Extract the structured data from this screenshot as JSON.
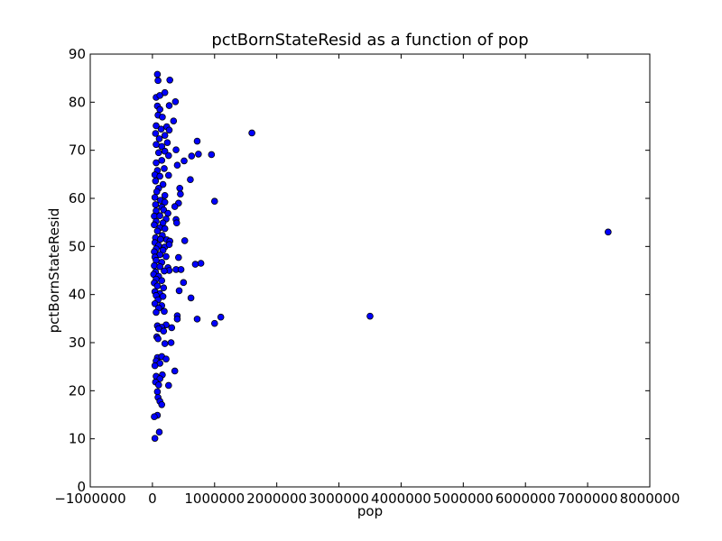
{
  "chart_data": {
    "type": "scatter",
    "title": "pctBornStateResid as a function of pop",
    "xlabel": "pop",
    "ylabel": "pctBornStateResid",
    "xlim": [
      -1000000,
      8000000
    ],
    "ylim": [
      0,
      90
    ],
    "xticks": [
      -1000000,
      0,
      1000000,
      2000000,
      3000000,
      4000000,
      5000000,
      6000000,
      7000000,
      8000000
    ],
    "xtick_labels": [
      "−1000000",
      "0",
      "1000000",
      "2000000",
      "3000000",
      "4000000",
      "5000000",
      "6000000",
      "7000000",
      "8000000"
    ],
    "yticks": [
      0,
      10,
      20,
      30,
      40,
      50,
      60,
      70,
      80,
      90
    ],
    "ytick_labels": [
      "0",
      "10",
      "20",
      "30",
      "40",
      "50",
      "60",
      "70",
      "80",
      "90"
    ],
    "grid": false,
    "marker_color": "#0000ff",
    "marker_edge": "#000000",
    "points": [
      [
        80000,
        85.8
      ],
      [
        90000,
        84.5
      ],
      [
        280000,
        84.6
      ],
      [
        60000,
        81.0
      ],
      [
        120000,
        81.4
      ],
      [
        200000,
        82.0
      ],
      [
        370000,
        80.1
      ],
      [
        80000,
        79.2
      ],
      [
        120000,
        78.5
      ],
      [
        270000,
        79.3
      ],
      [
        90000,
        77.3
      ],
      [
        160000,
        76.9
      ],
      [
        340000,
        76.1
      ],
      [
        60000,
        75.1
      ],
      [
        140000,
        74.4
      ],
      [
        230000,
        74.9
      ],
      [
        270000,
        74.2
      ],
      [
        1600000,
        73.6
      ],
      [
        50000,
        73.5
      ],
      [
        110000,
        72.4
      ],
      [
        200000,
        73.1
      ],
      [
        720000,
        71.9
      ],
      [
        60000,
        71.2
      ],
      [
        150000,
        70.8
      ],
      [
        240000,
        71.6
      ],
      [
        380000,
        70.1
      ],
      [
        740000,
        69.2
      ],
      [
        950000,
        69.1
      ],
      [
        630000,
        68.8
      ],
      [
        100000,
        69.5
      ],
      [
        200000,
        69.8
      ],
      [
        260000,
        68.9
      ],
      [
        510000,
        67.8
      ],
      [
        60000,
        67.4
      ],
      [
        150000,
        67.9
      ],
      [
        400000,
        66.9
      ],
      [
        80000,
        65.8
      ],
      [
        190000,
        66.2
      ],
      [
        40000,
        64.9
      ],
      [
        120000,
        64.6
      ],
      [
        260000,
        64.8
      ],
      [
        610000,
        63.9
      ],
      [
        50000,
        63.6
      ],
      [
        170000,
        62.9
      ],
      [
        100000,
        62.1
      ],
      [
        440000,
        62.1
      ],
      [
        70000,
        61.4
      ],
      [
        200000,
        60.6
      ],
      [
        450000,
        60.9
      ],
      [
        40000,
        60.2
      ],
      [
        130000,
        59.6
      ],
      [
        200000,
        59.2
      ],
      [
        1000000,
        59.4
      ],
      [
        420000,
        59.0
      ],
      [
        50000,
        58.7
      ],
      [
        150000,
        58.2
      ],
      [
        360000,
        58.3
      ],
      [
        60000,
        57.4
      ],
      [
        180000,
        57.6
      ],
      [
        250000,
        56.9
      ],
      [
        30000,
        56.3
      ],
      [
        120000,
        56.4
      ],
      [
        220000,
        55.7
      ],
      [
        380000,
        55.6
      ],
      [
        60000,
        55.2
      ],
      [
        170000,
        54.9
      ],
      [
        390000,
        54.9
      ],
      [
        30000,
        54.5
      ],
      [
        120000,
        53.9
      ],
      [
        200000,
        53.7
      ],
      [
        80000,
        53.2
      ],
      [
        160000,
        52.3
      ],
      [
        50000,
        51.8
      ],
      [
        130000,
        51.5
      ],
      [
        230000,
        51.4
      ],
      [
        520000,
        51.2
      ],
      [
        280000,
        51.1
      ],
      [
        40000,
        50.8
      ],
      [
        100000,
        50.2
      ],
      [
        200000,
        49.9
      ],
      [
        270000,
        50.4
      ],
      [
        60000,
        49.5
      ],
      [
        170000,
        49.2
      ],
      [
        30000,
        48.9
      ],
      [
        120000,
        48.3
      ],
      [
        40000,
        47.8
      ],
      [
        220000,
        47.9
      ],
      [
        420000,
        47.7
      ],
      [
        60000,
        47.1
      ],
      [
        150000,
        46.7
      ],
      [
        780000,
        46.5
      ],
      [
        690000,
        46.3
      ],
      [
        30000,
        46.0
      ],
      [
        120000,
        45.8
      ],
      [
        250000,
        45.6
      ],
      [
        270000,
        45.0
      ],
      [
        380000,
        45.2
      ],
      [
        460000,
        45.2
      ],
      [
        50000,
        44.7
      ],
      [
        190000,
        44.9
      ],
      [
        20000,
        44.2
      ],
      [
        100000,
        43.8
      ],
      [
        60000,
        43.2
      ],
      [
        150000,
        42.9
      ],
      [
        30000,
        42.4
      ],
      [
        500000,
        42.5
      ],
      [
        80000,
        41.8
      ],
      [
        180000,
        41.4
      ],
      [
        40000,
        40.6
      ],
      [
        430000,
        40.8
      ],
      [
        120000,
        40.2
      ],
      [
        60000,
        39.8
      ],
      [
        170000,
        39.6
      ],
      [
        620000,
        39.3
      ],
      [
        90000,
        38.9
      ],
      [
        40000,
        38.1
      ],
      [
        150000,
        37.7
      ],
      [
        100000,
        37.2
      ],
      [
        60000,
        36.3
      ],
      [
        190000,
        36.5
      ],
      [
        400000,
        35.6
      ],
      [
        1100000,
        35.3
      ],
      [
        3500000,
        35.5
      ],
      [
        720000,
        34.9
      ],
      [
        400000,
        34.9
      ],
      [
        1000000,
        34.0
      ],
      [
        80000,
        33.5
      ],
      [
        220000,
        33.7
      ],
      [
        150000,
        33.2
      ],
      [
        310000,
        33.1
      ],
      [
        100000,
        32.9
      ],
      [
        180000,
        32.4
      ],
      [
        70000,
        31.2
      ],
      [
        90000,
        30.8
      ],
      [
        300000,
        30.0
      ],
      [
        200000,
        29.8
      ],
      [
        80000,
        26.9
      ],
      [
        150000,
        27.1
      ],
      [
        220000,
        26.6
      ],
      [
        60000,
        26.2
      ],
      [
        120000,
        25.7
      ],
      [
        40000,
        25.2
      ],
      [
        160000,
        23.3
      ],
      [
        360000,
        24.1
      ],
      [
        60000,
        23.0
      ],
      [
        120000,
        22.5
      ],
      [
        50000,
        21.8
      ],
      [
        100000,
        21.2
      ],
      [
        260000,
        21.1
      ],
      [
        80000,
        19.8
      ],
      [
        90000,
        18.6
      ],
      [
        120000,
        17.8
      ],
      [
        150000,
        17.1
      ],
      [
        80000,
        14.9
      ],
      [
        30000,
        14.6
      ],
      [
        110000,
        11.4
      ],
      [
        40000,
        10.1
      ],
      [
        7330000,
        53.0
      ]
    ]
  }
}
